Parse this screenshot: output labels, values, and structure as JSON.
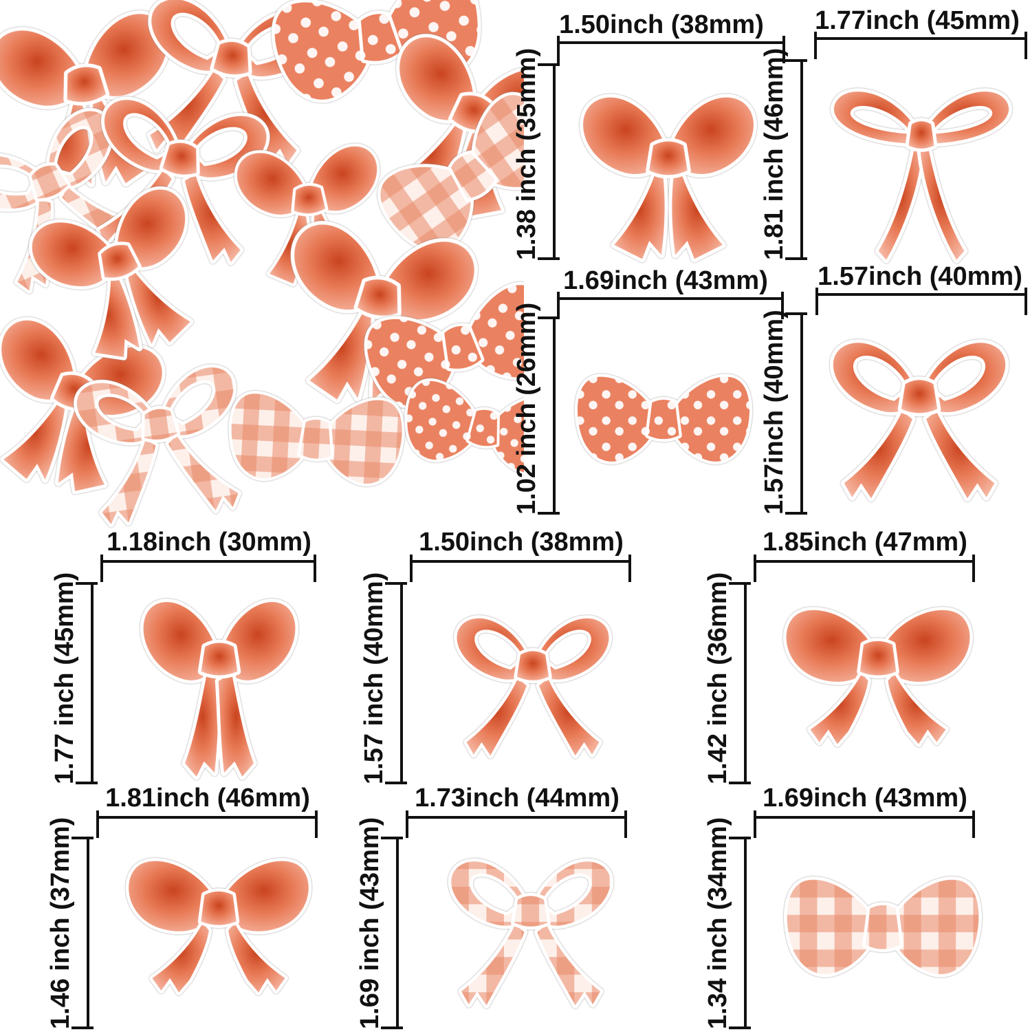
{
  "figure": {
    "kind": "product-size-diagram",
    "background": "#ffffff"
  },
  "colors": {
    "coral_dark": "#c9441f",
    "coral_mid": "#e87a56",
    "coral_light": "#f7c0ae",
    "gingham_base": "#fdf0ea",
    "gingham_check": "#e98a6a",
    "dimension_line": "#111111"
  },
  "pile_bows": [
    {
      "shape": "classic-bow",
      "pattern": "solid"
    },
    {
      "shape": "ribbon-bow",
      "pattern": "solid"
    },
    {
      "shape": "bowtie",
      "pattern": "polka-dot"
    },
    {
      "shape": "classic-bow",
      "pattern": "solid"
    },
    {
      "shape": "ribbon-bow",
      "pattern": "gingham"
    },
    {
      "shape": "ribbon-bow",
      "pattern": "solid"
    },
    {
      "shape": "classic-bow",
      "pattern": "solid"
    },
    {
      "shape": "bowtie",
      "pattern": "gingham"
    },
    {
      "shape": "classic-bow",
      "pattern": "solid"
    },
    {
      "shape": "bowtie",
      "pattern": "polka-dot"
    },
    {
      "shape": "classic-bow",
      "pattern": "solid"
    },
    {
      "shape": "ribbon-bow",
      "pattern": "gingham"
    },
    {
      "shape": "bowtie",
      "pattern": "gingham"
    },
    {
      "shape": "bowtie",
      "pattern": "polka-dot"
    },
    {
      "shape": "classic-bow",
      "pattern": "solid"
    }
  ],
  "measured_bows": [
    {
      "id": "top-1",
      "width_label": "1.50inch (38mm)",
      "height_label": "1.38 inch (35mm)",
      "shape": "classic-bow",
      "pattern": "solid"
    },
    {
      "id": "top-2",
      "width_label": "1.77inch (45mm)",
      "height_label": "1.81 inch (46mm)",
      "shape": "thin-bow",
      "pattern": "solid"
    },
    {
      "id": "top-3",
      "width_label": "1.69inch (43mm)",
      "height_label": "1.02 inch (26mm)",
      "shape": "bowtie",
      "pattern": "polka-dot"
    },
    {
      "id": "top-4",
      "width_label": "1.57inch (40mm)",
      "height_label": "1.57inch (40mm)",
      "shape": "ribbon-bow",
      "pattern": "solid"
    },
    {
      "id": "bottom-1",
      "width_label": "1.18inch (30mm)",
      "height_label": "1.77 inch (45mm)",
      "shape": "cheer-bow",
      "pattern": "solid"
    },
    {
      "id": "bottom-2",
      "width_label": "1.50inch (38mm)",
      "height_label": "1.57 inch (40mm)",
      "shape": "ribbon-bow",
      "pattern": "solid"
    },
    {
      "id": "bottom-3",
      "width_label": "1.85inch (47mm)",
      "height_label": "1.42 inch (36mm)",
      "shape": "wide-bow",
      "pattern": "solid"
    },
    {
      "id": "bottom-4",
      "width_label": "1.81inch (46mm)",
      "height_label": "1.46 inch (37mm)",
      "shape": "wide-bow",
      "pattern": "solid"
    },
    {
      "id": "bottom-5",
      "width_label": "1.73inch (44mm)",
      "height_label": "1.69 inch (43mm)",
      "shape": "ribbon-bow",
      "pattern": "gingham"
    },
    {
      "id": "bottom-6",
      "width_label": "1.69inch (43mm)",
      "height_label": "1.34 inch (34mm)",
      "shape": "bowtie",
      "pattern": "gingham"
    }
  ]
}
